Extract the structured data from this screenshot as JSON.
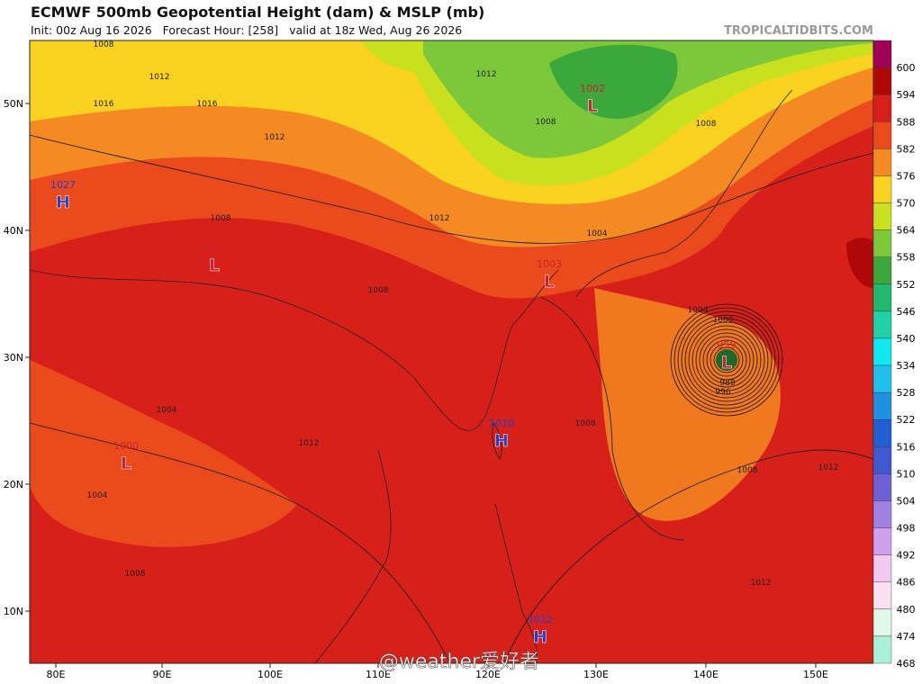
{
  "header": {
    "title": "ECMWF 500mb Geopotential Height (dam) & MSLP (mb)",
    "subtitle": "Init: 00z Aug 16 2026   Forecast Hour: [258]   valid at 18z Wed, Aug 26 2026",
    "source": "TROPICALTIDBITS.COM"
  },
  "axes": {
    "longitude": [
      "80E",
      "90E",
      "100E",
      "110E",
      "120E",
      "130E",
      "140E",
      "150E"
    ],
    "latitude": [
      "50N",
      "40N",
      "30N",
      "20N",
      "10N"
    ]
  },
  "colorbar": [
    {
      "label": "600",
      "color": "#a0005a"
    },
    {
      "label": "594",
      "color": "#b00808"
    },
    {
      "label": "588",
      "color": "#d8201a"
    },
    {
      "label": "582",
      "color": "#ea4a1c"
    },
    {
      "label": "576",
      "color": "#f58a22"
    },
    {
      "label": "570",
      "color": "#f8d21e"
    },
    {
      "label": "564",
      "color": "#c8e01e"
    },
    {
      "label": "558",
      "color": "#7cc83a"
    },
    {
      "label": "552",
      "color": "#3aa83a"
    },
    {
      "label": "546",
      "color": "#22b86e"
    },
    {
      "label": "540",
      "color": "#20d0a8"
    },
    {
      "label": "534",
      "color": "#10e8f0"
    },
    {
      "label": "528",
      "color": "#20c0ee"
    },
    {
      "label": "522",
      "color": "#2090e0"
    },
    {
      "label": "516",
      "color": "#2060d0"
    },
    {
      "label": "510",
      "color": "#4058d0"
    },
    {
      "label": "504",
      "color": "#7060d8"
    },
    {
      "label": "498",
      "color": "#a080e0"
    },
    {
      "label": "492",
      "color": "#d0a0ec"
    },
    {
      "label": "486",
      "color": "#f0c8f0"
    },
    {
      "label": "480",
      "color": "#f8e0f0"
    },
    {
      "label": "474",
      "color": "#e0f8e8"
    },
    {
      "label": "468",
      "color": "#a8f0d8"
    }
  ],
  "centers": [
    {
      "kind": "H",
      "pressure": "1027"
    },
    {
      "kind": "L",
      "pressure": "1002"
    },
    {
      "kind": "L",
      "pressure": "1000"
    },
    {
      "kind": "H",
      "pressure": "1010"
    },
    {
      "kind": "L",
      "pressure": "1003"
    },
    {
      "kind": "L",
      "pressure": "1002"
    },
    {
      "kind": "L",
      "pressure": "959"
    },
    {
      "kind": "H",
      "pressure": "1012"
    }
  ],
  "isobar_labels": [
    "1008",
    "1012",
    "1016",
    "1012",
    "1008",
    "1004",
    "1008",
    "1012",
    "1004",
    "1008",
    "1008",
    "1000",
    "988",
    "996",
    "1004",
    "1012",
    "1008",
    "1012",
    "1008",
    "1012",
    "1012",
    "1004",
    "1008",
    "1016"
  ],
  "watermark": "@weather爱好者"
}
